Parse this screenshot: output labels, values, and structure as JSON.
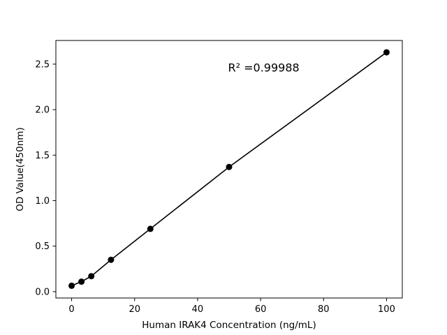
{
  "chart_data": {
    "type": "scatter",
    "title": "",
    "xlabel": "Human IRAK4 Concentration (ng/mL)",
    "ylabel": "OD Value(450nm)",
    "x": [
      0,
      3.125,
      6.25,
      12.5,
      25,
      50,
      100
    ],
    "y": [
      0.065,
      0.11,
      0.17,
      0.35,
      0.69,
      1.37,
      2.63
    ],
    "line_through_points": true,
    "annotation": "R² =0.99988",
    "annotation_pos": [
      0.6,
      0.88
    ],
    "xlim": [
      -5,
      105
    ],
    "ylim": [
      -0.07,
      2.76
    ],
    "xtick_values": [
      0,
      20,
      40,
      60,
      80,
      100
    ],
    "xtick_labels": [
      "0",
      "20",
      "40",
      "60",
      "80",
      "100"
    ],
    "ytick_values": [
      0.0,
      0.5,
      1.0,
      1.5,
      2.0,
      2.5
    ],
    "ytick_labels": [
      "0.0",
      "0.5",
      "1.0",
      "1.5",
      "2.0",
      "2.5"
    ],
    "grid": false,
    "legend": "none",
    "marker_color": "#000000",
    "line_color": "#000000",
    "background_color": "#ffffff"
  }
}
